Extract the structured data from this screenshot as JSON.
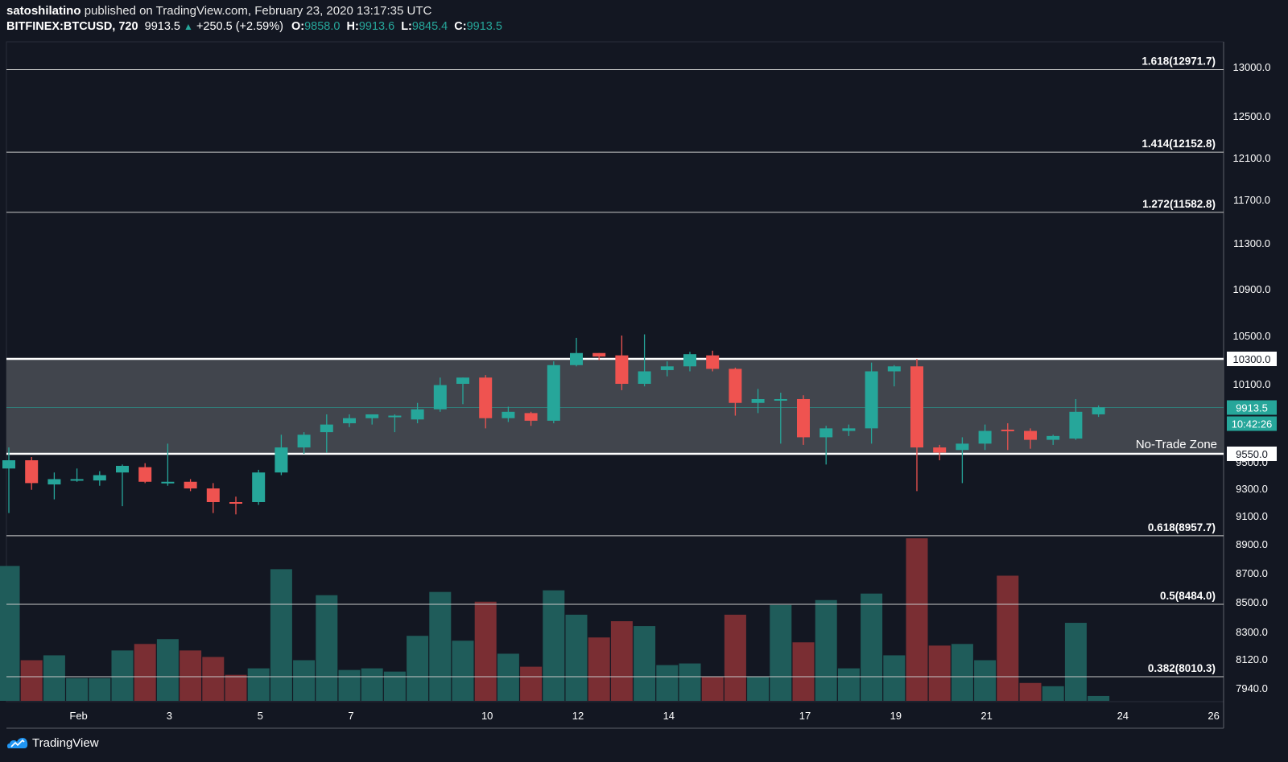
{
  "header": {
    "author": "satoshilatino",
    "published_text": "published on TradingView.com, February 23, 2020 13:17:35 UTC",
    "symbol": "BITFINEX:BTCUSD, 720",
    "last": "9913.5",
    "change": "+250.5 (+2.59%)",
    "o_label": "O:",
    "o_value": "9858.0",
    "h_label": "H:",
    "h_value": "9913.6",
    "l_label": "L:",
    "l_value": "9845.4",
    "c_label": "C:",
    "c_value": "9913.5"
  },
  "brand": {
    "name": "TradingView",
    "icon": "tradingview-logo-icon"
  },
  "colors": {
    "background": "#131722",
    "up": "#26a69a",
    "down": "#ef5350",
    "up_volume": "#1f5c5a",
    "down_volume": "#7a2e33",
    "zone": "#4a4d55",
    "line": "#ffffff"
  },
  "chart_data": {
    "type": "candlestick",
    "y_ticks": [
      13000,
      12500,
      12100,
      11700,
      11300,
      10900,
      10500,
      10100,
      9500,
      9300,
      9100,
      8900,
      8700,
      8500,
      8300,
      8120,
      7940
    ],
    "y_tick_labels": [
      "13000.0",
      "12500.0",
      "12100.0",
      "11700.0",
      "11300.0",
      "10900.0",
      "10500.0",
      "10100.0",
      "9500.0",
      "9300.0",
      "9100.0",
      "8900.0",
      "8700.0",
      "8500.0",
      "8300.0",
      "8120.0",
      "7940.0"
    ],
    "x_tick_labels": [
      "Feb",
      "3",
      "5",
      "7",
      "10",
      "12",
      "14",
      "17",
      "19",
      "21",
      "24",
      "26"
    ],
    "x_tick_indices": [
      3,
      7,
      11,
      15,
      21,
      25,
      29,
      35,
      39,
      43,
      49,
      53
    ],
    "fib_levels": [
      {
        "label": "1.618(12971.7)",
        "value": 12971.7
      },
      {
        "label": "1.414(12152.8)",
        "value": 12152.8
      },
      {
        "label": "1.272(11582.8)",
        "value": 11582.8
      },
      {
        "label": "0.618(8957.7)",
        "value": 8957.7
      },
      {
        "label": "0.5(8484.0)",
        "value": 8484.0
      },
      {
        "label": "0.382(8010.3)",
        "value": 8010.3
      }
    ],
    "zone": {
      "label": "No-Trade Zone",
      "top": 10300,
      "bottom": 9550,
      "top_label": "10300.0",
      "bottom_label": "9550.0"
    },
    "last_price": {
      "value": 9913.5,
      "label": "9913.5",
      "countdown": "10:42:26"
    },
    "candles": [
      {
        "o": 9450,
        "h": 9600,
        "l": 9120,
        "c": 9510
      },
      {
        "o": 9510,
        "h": 9530,
        "l": 9290,
        "c": 9340
      },
      {
        "o": 9330,
        "h": 9420,
        "l": 9220,
        "c": 9370
      },
      {
        "o": 9360,
        "h": 9450,
        "l": 9350,
        "c": 9370
      },
      {
        "o": 9360,
        "h": 9430,
        "l": 9320,
        "c": 9400
      },
      {
        "o": 9420,
        "h": 9480,
        "l": 9170,
        "c": 9470
      },
      {
        "o": 9460,
        "h": 9490,
        "l": 9340,
        "c": 9350
      },
      {
        "o": 9350,
        "h": 9630,
        "l": 9320,
        "c": 9350
      },
      {
        "o": 9350,
        "h": 9370,
        "l": 9280,
        "c": 9300
      },
      {
        "o": 9300,
        "h": 9340,
        "l": 9120,
        "c": 9200
      },
      {
        "o": 9200,
        "h": 9240,
        "l": 9110,
        "c": 9195
      },
      {
        "o": 9200,
        "h": 9440,
        "l": 9180,
        "c": 9420
      },
      {
        "o": 9420,
        "h": 9700,
        "l": 9400,
        "c": 9600
      },
      {
        "o": 9600,
        "h": 9720,
        "l": 9550,
        "c": 9700
      },
      {
        "o": 9720,
        "h": 9860,
        "l": 9560,
        "c": 9780
      },
      {
        "o": 9790,
        "h": 9860,
        "l": 9760,
        "c": 9830
      },
      {
        "o": 9830,
        "h": 9860,
        "l": 9780,
        "c": 9860
      },
      {
        "o": 9850,
        "h": 9860,
        "l": 9720,
        "c": 9850
      },
      {
        "o": 9820,
        "h": 9950,
        "l": 9790,
        "c": 9900
      },
      {
        "o": 9900,
        "h": 10150,
        "l": 9880,
        "c": 10090
      },
      {
        "o": 10100,
        "h": 10150,
        "l": 9940,
        "c": 10150
      },
      {
        "o": 10150,
        "h": 10170,
        "l": 9750,
        "c": 9830
      },
      {
        "o": 9830,
        "h": 9920,
        "l": 9800,
        "c": 9880
      },
      {
        "o": 9870,
        "h": 9880,
        "l": 9770,
        "c": 9810
      },
      {
        "o": 9810,
        "h": 10280,
        "l": 9790,
        "c": 10250
      },
      {
        "o": 10250,
        "h": 10480,
        "l": 10240,
        "c": 10350
      },
      {
        "o": 10350,
        "h": 10350,
        "l": 10290,
        "c": 10320
      },
      {
        "o": 10330,
        "h": 10500,
        "l": 10050,
        "c": 10100
      },
      {
        "o": 10100,
        "h": 10510,
        "l": 10080,
        "c": 10200
      },
      {
        "o": 10210,
        "h": 10280,
        "l": 10160,
        "c": 10240
      },
      {
        "o": 10240,
        "h": 10360,
        "l": 10200,
        "c": 10340
      },
      {
        "o": 10330,
        "h": 10370,
        "l": 10200,
        "c": 10220
      },
      {
        "o": 10220,
        "h": 10230,
        "l": 9850,
        "c": 9950
      },
      {
        "o": 9950,
        "h": 10060,
        "l": 9870,
        "c": 9980
      },
      {
        "o": 9980,
        "h": 10030,
        "l": 9630,
        "c": 9980
      },
      {
        "o": 9980,
        "h": 10010,
        "l": 9620,
        "c": 9680
      },
      {
        "o": 9680,
        "h": 9770,
        "l": 9480,
        "c": 9750
      },
      {
        "o": 9730,
        "h": 9780,
        "l": 9690,
        "c": 9750
      },
      {
        "o": 9750,
        "h": 10270,
        "l": 9630,
        "c": 10200
      },
      {
        "o": 10200,
        "h": 10250,
        "l": 10080,
        "c": 10240
      },
      {
        "o": 10240,
        "h": 10300,
        "l": 9280,
        "c": 9600
      },
      {
        "o": 9600,
        "h": 9620,
        "l": 9510,
        "c": 9560
      },
      {
        "o": 9580,
        "h": 9680,
        "l": 9340,
        "c": 9630
      },
      {
        "o": 9630,
        "h": 9780,
        "l": 9580,
        "c": 9730
      },
      {
        "o": 9740,
        "h": 9790,
        "l": 9580,
        "c": 9730
      },
      {
        "o": 9730,
        "h": 9750,
        "l": 9590,
        "c": 9660
      },
      {
        "o": 9660,
        "h": 9700,
        "l": 9620,
        "c": 9690
      },
      {
        "o": 9670,
        "h": 9980,
        "l": 9660,
        "c": 9880
      },
      {
        "o": 9860,
        "h": 9930,
        "l": 9840,
        "c": 9915
      }
    ],
    "volume_relative": [
      0.83,
      0.25,
      0.28,
      0.14,
      0.14,
      0.31,
      0.35,
      0.38,
      0.31,
      0.27,
      0.16,
      0.2,
      0.81,
      0.25,
      0.65,
      0.19,
      0.2,
      0.18,
      0.4,
      0.67,
      0.37,
      0.61,
      0.29,
      0.21,
      0.68,
      0.53,
      0.39,
      0.49,
      0.46,
      0.22,
      0.23,
      0.15,
      0.53,
      0.15,
      0.59,
      0.36,
      0.62,
      0.2,
      0.66,
      0.28,
      1.0,
      0.34,
      0.35,
      0.25,
      0.77,
      0.11,
      0.09,
      0.48,
      0.03
    ]
  }
}
